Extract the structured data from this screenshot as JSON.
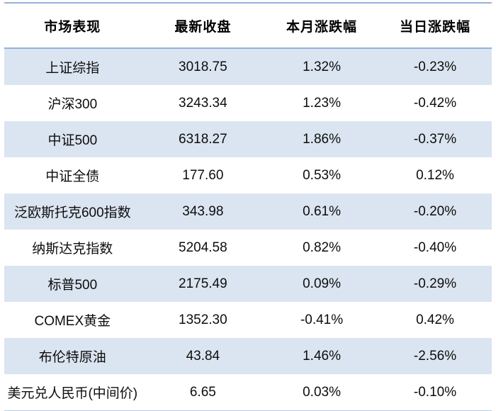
{
  "table": {
    "columns": [
      "市场表现",
      "最新收盘",
      "本月涨跌幅",
      "当日涨跌幅"
    ],
    "rows": [
      [
        "上证综指",
        "3018.75",
        "1.32%",
        "-0.23%"
      ],
      [
        "沪深300",
        "3243.34",
        "1.23%",
        "-0.42%"
      ],
      [
        "中证500",
        "6318.27",
        "1.86%",
        "-0.37%"
      ],
      [
        "中证全债",
        "177.60",
        "0.53%",
        "0.12%"
      ],
      [
        "泛欧斯托克600指数",
        "343.98",
        "0.61%",
        "-0.20%"
      ],
      [
        "纳斯达克指数",
        "5204.58",
        "0.82%",
        "-0.40%"
      ],
      [
        "标普500",
        "2175.49",
        "0.09%",
        "-0.29%"
      ],
      [
        "COMEX黄金",
        "1352.30",
        "-0.41%",
        "0.42%"
      ],
      [
        "布伦特原油",
        "43.84",
        "1.46%",
        "-2.56%"
      ],
      [
        "美元兑人民币(中间价)",
        "6.65",
        "0.03%",
        "-0.10%"
      ]
    ]
  },
  "colors": {
    "stripe_row_bg": "#DBE5F1",
    "plain_row_bg": "#FFFFFF",
    "top_border": "#95B3D7",
    "header_separator": "#95B3D7",
    "bottom_border": "#B8CCE4",
    "text": "#0D0D0D"
  },
  "chart_data": {
    "type": "table",
    "title": "市场表现",
    "columns": [
      "市场表现",
      "最新收盘",
      "本月涨跌幅",
      "当日涨跌幅"
    ],
    "rows": [
      {
        "market": "上证综指",
        "latest_close": 3018.75,
        "monthly_change_pct": 1.32,
        "daily_change_pct": -0.23
      },
      {
        "market": "沪深300",
        "latest_close": 3243.34,
        "monthly_change_pct": 1.23,
        "daily_change_pct": -0.42
      },
      {
        "market": "中证500",
        "latest_close": 6318.27,
        "monthly_change_pct": 1.86,
        "daily_change_pct": -0.37
      },
      {
        "market": "中证全债",
        "latest_close": 177.6,
        "monthly_change_pct": 0.53,
        "daily_change_pct": 0.12
      },
      {
        "market": "泛欧斯托克600指数",
        "latest_close": 343.98,
        "monthly_change_pct": 0.61,
        "daily_change_pct": -0.2
      },
      {
        "market": "纳斯达克指数",
        "latest_close": 5204.58,
        "monthly_change_pct": 0.82,
        "daily_change_pct": -0.4
      },
      {
        "market": "标普500",
        "latest_close": 2175.49,
        "monthly_change_pct": 0.09,
        "daily_change_pct": -0.29
      },
      {
        "market": "COMEX黄金",
        "latest_close": 1352.3,
        "monthly_change_pct": -0.41,
        "daily_change_pct": 0.42
      },
      {
        "market": "布伦特原油",
        "latest_close": 43.84,
        "monthly_change_pct": 1.46,
        "daily_change_pct": -2.56
      },
      {
        "market": "美元兑人民币(中间价)",
        "latest_close": 6.65,
        "monthly_change_pct": 0.03,
        "daily_change_pct": -0.1
      }
    ],
    "layout": {
      "zebra_striping": true,
      "striped_rows": "odd",
      "alignment": "center",
      "grid": "horizontal-borders-only"
    }
  }
}
